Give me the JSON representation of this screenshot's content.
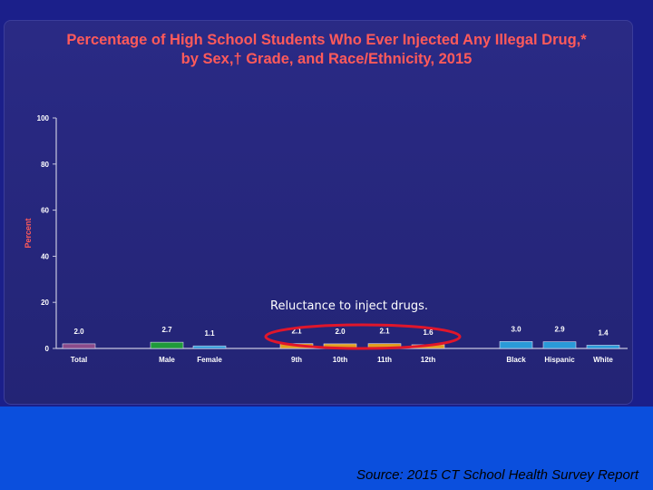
{
  "slide": {
    "source": "Source: 2015 CT School Health Survey Report",
    "annotation": "Reluctance to inject drugs."
  },
  "chart_data": {
    "type": "bar",
    "title_line1": "Percentage of High School Students Who Ever Injected Any Illegal Drug,*",
    "title_line2": "by Sex,† Grade, and Race/Ethnicity, 2015",
    "ylabel": "Percent",
    "ylim": [
      0,
      100
    ],
    "yticks": [
      0,
      20,
      40,
      60,
      80,
      100
    ],
    "categories": [
      "Total",
      "Male",
      "Female",
      "9th",
      "10th",
      "11th",
      "12th",
      "Black",
      "Hispanic",
      "White"
    ],
    "values": [
      2.0,
      2.7,
      1.1,
      2.1,
      2.0,
      2.1,
      1.6,
      3.0,
      2.9,
      1.4
    ],
    "value_labels": [
      "2.0",
      "2.7",
      "1.1",
      "2.1",
      "2.0",
      "2.1",
      "1.6",
      "3.0",
      "2.9",
      "1.4"
    ],
    "bar_colors": [
      "#8a4a8a",
      "#1f9a3a",
      "#2a9ad8",
      "#e0a020",
      "#e0a020",
      "#e0a020",
      "#e0a020",
      "#2a9ad8",
      "#2a9ad8",
      "#2a9ad8"
    ],
    "highlight_color": "#e0162b",
    "grid": false,
    "legend": "none"
  }
}
